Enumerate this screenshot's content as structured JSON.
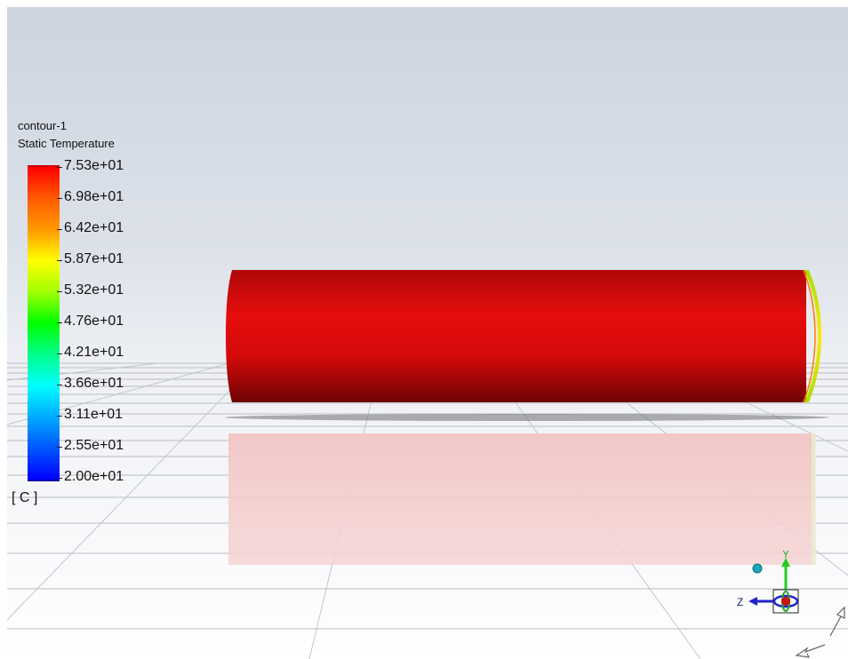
{
  "legend": {
    "object_name": "contour-1",
    "quantity": "Static Temperature",
    "unit_label": "[ C ]",
    "ticks": [
      "7.53e+01",
      "6.98e+01",
      "6.42e+01",
      "5.87e+01",
      "5.32e+01",
      "4.76e+01",
      "4.21e+01",
      "3.66e+01",
      "3.11e+01",
      "2.55e+01",
      "2.00e+01"
    ],
    "range_max": 75.3,
    "range_min": 20.0,
    "colormap": [
      "#ff0000",
      "#ff9900",
      "#ffff00",
      "#00ff00",
      "#00ffff",
      "#0000ff"
    ]
  },
  "axes": {
    "y_label": "Y",
    "z_label": "Z",
    "y_color": "#22cc22",
    "z_color": "#2222cc",
    "x_color": "#cc1111"
  },
  "scene": {
    "cylinder_color": "#dd0a0a",
    "end_cap_color": "#8ad400",
    "floor_line_color": "#b9bcc2"
  }
}
